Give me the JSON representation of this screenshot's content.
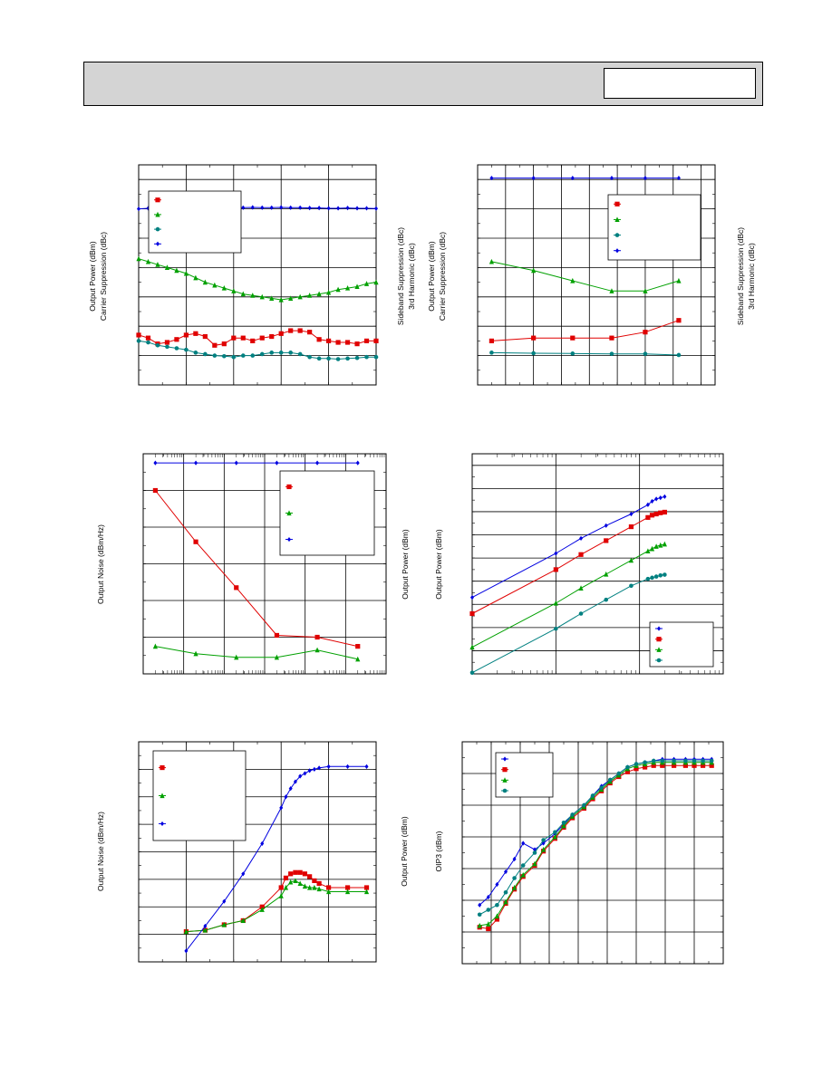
{
  "header": {
    "title": "",
    "part_number": ""
  },
  "chart_data": [
    {
      "id": "c1",
      "type": "line",
      "y_labels_left": [
        "Output Power (dBm)",
        "Carrier Suppression (dBc)"
      ],
      "y_labels_right": [
        "Sideband Suppression (dBc)",
        "3rd Harmonic (dBc)"
      ],
      "xlim": [
        0,
        25
      ],
      "ylim": [
        0,
        7.5
      ],
      "legend": "top-left",
      "series": [
        {
          "color": "#e00000",
          "marker": "square",
          "x": [
            0,
            1,
            2,
            3,
            4,
            5,
            6,
            7,
            8,
            9,
            10,
            11,
            12,
            13,
            14,
            15,
            16,
            17,
            18,
            19,
            20,
            21,
            22,
            23,
            24,
            25
          ],
          "y": [
            1.7,
            1.6,
            1.4,
            1.45,
            1.55,
            1.7,
            1.75,
            1.65,
            1.35,
            1.4,
            1.6,
            1.6,
            1.5,
            1.6,
            1.65,
            1.75,
            1.85,
            1.85,
            1.8,
            1.55,
            1.5,
            1.45,
            1.45,
            1.4,
            1.5,
            1.5
          ]
        },
        {
          "color": "#00a000",
          "marker": "triangle",
          "x": [
            0,
            1,
            2,
            3,
            4,
            5,
            6,
            7,
            8,
            9,
            10,
            11,
            12,
            13,
            14,
            15,
            16,
            17,
            18,
            19,
            20,
            21,
            22,
            23,
            24,
            25
          ],
          "y": [
            4.3,
            4.2,
            4.1,
            4.0,
            3.9,
            3.8,
            3.65,
            3.5,
            3.4,
            3.3,
            3.2,
            3.1,
            3.05,
            3.0,
            2.95,
            2.9,
            2.95,
            3.0,
            3.05,
            3.1,
            3.15,
            3.25,
            3.3,
            3.35,
            3.45,
            3.5
          ]
        },
        {
          "color": "#008080",
          "marker": "circle",
          "x": [
            0,
            1,
            2,
            3,
            4,
            5,
            6,
            7,
            8,
            9,
            10,
            11,
            12,
            13,
            14,
            15,
            16,
            17,
            18,
            19,
            20,
            21,
            22,
            23,
            24,
            25
          ],
          "y": [
            1.5,
            1.45,
            1.35,
            1.3,
            1.25,
            1.2,
            1.1,
            1.05,
            1.0,
            0.98,
            0.95,
            1.0,
            1.0,
            1.05,
            1.1,
            1.1,
            1.1,
            1.05,
            0.95,
            0.9,
            0.9,
            0.88,
            0.9,
            0.92,
            0.95,
            0.95
          ]
        },
        {
          "color": "#0000e0",
          "marker": "diamond",
          "x": [
            0,
            1,
            2,
            3,
            4,
            5,
            6,
            7,
            8,
            9,
            10,
            11,
            12,
            13,
            14,
            15,
            16,
            17,
            18,
            19,
            20,
            21,
            22,
            23,
            24,
            25
          ],
          "y": [
            6.0,
            6.02,
            6.03,
            6.02,
            6.04,
            6.04,
            6.05,
            6.04,
            6.05,
            6.06,
            6.05,
            6.04,
            6.05,
            6.04,
            6.04,
            6.05,
            6.04,
            6.04,
            6.03,
            6.03,
            6.02,
            6.02,
            6.03,
            6.02,
            6.02,
            6.01
          ]
        }
      ]
    },
    {
      "id": "c2",
      "type": "line",
      "y_labels_left": [
        "Output Power (dBm)",
        "Carrier Suppression (dBc)"
      ],
      "y_labels_right": [
        "Sideband Suppression (dBc)",
        "3rd Harmonic (dBc)"
      ],
      "xlim": [
        0,
        8.5
      ],
      "ylim": [
        0,
        7.5
      ],
      "legend": "top-right",
      "series": [
        {
          "color": "#e00000",
          "marker": "square",
          "x": [
            0.5,
            2,
            3.4,
            4.8,
            6,
            7.2
          ],
          "y": [
            1.5,
            1.6,
            1.6,
            1.6,
            1.8,
            2.2
          ]
        },
        {
          "color": "#00a000",
          "marker": "triangle",
          "x": [
            0.5,
            2,
            3.4,
            4.8,
            6,
            7.2
          ],
          "y": [
            4.2,
            3.9,
            3.55,
            3.2,
            3.2,
            3.55
          ]
        },
        {
          "color": "#008080",
          "marker": "circle",
          "x": [
            0.5,
            2,
            3.4,
            4.8,
            6,
            7.2
          ],
          "y": [
            1.1,
            1.08,
            1.07,
            1.06,
            1.06,
            1.02
          ]
        },
        {
          "color": "#0000e0",
          "marker": "diamond",
          "x": [
            0.5,
            2,
            3.4,
            4.8,
            6,
            7.2
          ],
          "y": [
            7.05,
            7.05,
            7.05,
            7.05,
            7.05,
            7.05
          ]
        }
      ]
    },
    {
      "id": "c3",
      "type": "line",
      "y_labels_left": [
        "Output Noise (dBm/Hz)"
      ],
      "y_labels_right": [
        "Output Power (dBm)"
      ],
      "xlim": [
        0,
        6
      ],
      "ylim": [
        0,
        6
      ],
      "legend": "top-right",
      "series": [
        {
          "color": "#e00000",
          "marker": "square",
          "x": [
            0.3,
            1.3,
            2.3,
            3.3,
            4.3,
            5.3
          ],
          "y": [
            5.0,
            3.6,
            2.35,
            1.05,
            1.0,
            0.75
          ]
        },
        {
          "color": "#00a000",
          "marker": "triangle",
          "x": [
            0.3,
            1.3,
            2.3,
            3.3,
            4.3,
            5.3
          ],
          "y": [
            0.75,
            0.55,
            0.45,
            0.45,
            0.65,
            0.4
          ]
        },
        {
          "color": "#0000e0",
          "marker": "diamond",
          "x": [
            0.3,
            1.3,
            2.3,
            3.3,
            4.3,
            5.3
          ],
          "y": [
            5.75,
            5.75,
            5.75,
            5.75,
            5.75,
            5.75
          ]
        }
      ]
    },
    {
      "id": "c4",
      "type": "line",
      "y_labels_left": [
        "Output Power (dBm)"
      ],
      "xlim": [
        0,
        3
      ],
      "ylim": [
        0,
        9.5
      ],
      "legend": "bottom-right",
      "series": [
        {
          "color": "#0000e0",
          "marker": "diamond",
          "x": [
            0,
            1,
            1.3,
            1.6,
            1.9,
            2.1,
            2.15,
            2.2,
            2.25,
            2.3
          ],
          "y": [
            3.3,
            5.2,
            5.85,
            6.4,
            6.9,
            7.3,
            7.45,
            7.55,
            7.6,
            7.65
          ]
        },
        {
          "color": "#e00000",
          "marker": "square",
          "x": [
            0,
            1,
            1.3,
            1.6,
            1.9,
            2.1,
            2.15,
            2.2,
            2.25,
            2.3
          ],
          "y": [
            2.6,
            4.5,
            5.15,
            5.75,
            6.35,
            6.75,
            6.85,
            6.9,
            6.95,
            6.98
          ]
        },
        {
          "color": "#00a000",
          "marker": "triangle",
          "x": [
            0,
            1,
            1.3,
            1.6,
            1.9,
            2.1,
            2.15,
            2.2,
            2.25,
            2.3
          ],
          "y": [
            1.15,
            3.05,
            3.7,
            4.3,
            4.9,
            5.3,
            5.4,
            5.5,
            5.55,
            5.6
          ]
        },
        {
          "color": "#008080",
          "marker": "circle",
          "x": [
            0,
            1,
            1.3,
            1.6,
            1.9,
            2.1,
            2.15,
            2.2,
            2.25,
            2.3
          ],
          "y": [
            0.05,
            1.95,
            2.6,
            3.2,
            3.8,
            4.1,
            4.15,
            4.2,
            4.25,
            4.28
          ]
        }
      ]
    },
    {
      "id": "c5",
      "type": "line",
      "y_labels_left": [
        "Output Noise (dBm/Hz)"
      ],
      "y_labels_right": [
        "Output Power (dBm)"
      ],
      "xlim": [
        0,
        5
      ],
      "ylim": [
        0,
        8
      ],
      "legend": "top-left",
      "series": [
        {
          "color": "#e00000",
          "marker": "square",
          "x": [
            1,
            1.4,
            1.8,
            2.2,
            2.6,
            3,
            3.1,
            3.2,
            3.3,
            3.4,
            3.5,
            3.6,
            3.7,
            3.8,
            4,
            4.4,
            4.8
          ],
          "y": [
            1.1,
            1.15,
            1.35,
            1.5,
            2.0,
            2.7,
            3.05,
            3.2,
            3.25,
            3.25,
            3.2,
            3.1,
            2.95,
            2.85,
            2.7,
            2.7,
            2.7
          ]
        },
        {
          "color": "#00a000",
          "marker": "triangle",
          "x": [
            1,
            1.4,
            1.8,
            2.2,
            2.6,
            3,
            3.1,
            3.2,
            3.3,
            3.4,
            3.5,
            3.6,
            3.7,
            3.8,
            4,
            4.4,
            4.8
          ],
          "y": [
            1.1,
            1.15,
            1.35,
            1.5,
            1.9,
            2.4,
            2.7,
            2.9,
            2.95,
            2.85,
            2.75,
            2.7,
            2.7,
            2.65,
            2.55,
            2.55,
            2.55
          ]
        },
        {
          "color": "#0000e0",
          "marker": "diamond",
          "x": [
            1,
            1.4,
            1.8,
            2.2,
            2.6,
            3,
            3.1,
            3.2,
            3.3,
            3.4,
            3.5,
            3.6,
            3.7,
            3.8,
            4,
            4.4,
            4.8
          ],
          "y": [
            0.4,
            1.3,
            2.2,
            3.2,
            4.3,
            5.6,
            6.0,
            6.3,
            6.55,
            6.75,
            6.85,
            6.95,
            7.0,
            7.05,
            7.1,
            7.1,
            7.1
          ]
        }
      ]
    },
    {
      "id": "c6",
      "type": "line",
      "y_labels_left": [
        "OIP3 (dBm)"
      ],
      "xlim": [
        0,
        9
      ],
      "ylim": [
        0,
        7
      ],
      "legend": "top-left",
      "series": [
        {
          "color": "#0000e0",
          "marker": "diamond",
          "x": [
            0.6,
            0.9,
            1.2,
            1.5,
            1.8,
            2.1,
            2.5,
            2.8,
            3.2,
            3.5,
            3.8,
            4.2,
            4.5,
            4.8,
            5.1,
            5.4,
            5.7,
            6,
            6.3,
            6.6,
            6.9,
            7.3,
            7.7,
            8.0,
            8.3,
            8.6
          ],
          "y": [
            1.85,
            2.1,
            2.5,
            2.9,
            3.3,
            3.8,
            3.6,
            3.8,
            4.1,
            4.4,
            4.7,
            5.0,
            5.3,
            5.6,
            5.8,
            6.0,
            6.2,
            6.3,
            6.35,
            6.4,
            6.45,
            6.45,
            6.45,
            6.45,
            6.45,
            6.45
          ]
        },
        {
          "color": "#e00000",
          "marker": "square",
          "x": [
            0.6,
            0.9,
            1.2,
            1.5,
            1.8,
            2.1,
            2.5,
            2.8,
            3.2,
            3.5,
            3.8,
            4.2,
            4.5,
            4.8,
            5.1,
            5.4,
            5.7,
            6,
            6.3,
            6.6,
            6.9,
            7.3,
            7.7,
            8.0,
            8.3,
            8.6
          ],
          "y": [
            1.15,
            1.1,
            1.4,
            1.9,
            2.35,
            2.75,
            3.1,
            3.55,
            3.95,
            4.3,
            4.6,
            4.9,
            5.2,
            5.45,
            5.7,
            5.9,
            6.05,
            6.15,
            6.2,
            6.25,
            6.25,
            6.25,
            6.25,
            6.25,
            6.25,
            6.25
          ]
        },
        {
          "color": "#00a000",
          "marker": "triangle",
          "x": [
            0.6,
            0.9,
            1.2,
            1.5,
            1.8,
            2.1,
            2.5,
            2.8,
            3.2,
            3.5,
            3.8,
            4.2,
            4.5,
            4.8,
            5.1,
            5.4,
            5.7,
            6,
            6.3,
            6.6,
            6.9,
            7.3,
            7.7,
            8.0,
            8.3,
            8.6
          ],
          "y": [
            1.2,
            1.25,
            1.5,
            1.95,
            2.4,
            2.8,
            3.15,
            3.6,
            4.0,
            4.35,
            4.65,
            4.95,
            5.25,
            5.5,
            5.75,
            5.95,
            6.15,
            6.25,
            6.3,
            6.35,
            6.35,
            6.35,
            6.35,
            6.35,
            6.35,
            6.35
          ]
        },
        {
          "color": "#008080",
          "marker": "circle",
          "x": [
            0.6,
            0.9,
            1.2,
            1.5,
            1.8,
            2.1,
            2.5,
            2.8,
            3.2,
            3.5,
            3.8,
            4.2,
            4.5,
            4.8,
            5.1,
            5.4,
            5.7,
            6,
            6.3,
            6.6,
            6.9,
            7.3,
            7.7,
            8.0,
            8.3,
            8.6
          ],
          "y": [
            1.55,
            1.7,
            1.85,
            2.25,
            2.7,
            3.1,
            3.5,
            3.9,
            4.15,
            4.45,
            4.7,
            5.0,
            5.3,
            5.55,
            5.8,
            6.0,
            6.2,
            6.3,
            6.35,
            6.4,
            6.4,
            6.4,
            6.4,
            6.4,
            6.4,
            6.4
          ]
        }
      ]
    }
  ]
}
